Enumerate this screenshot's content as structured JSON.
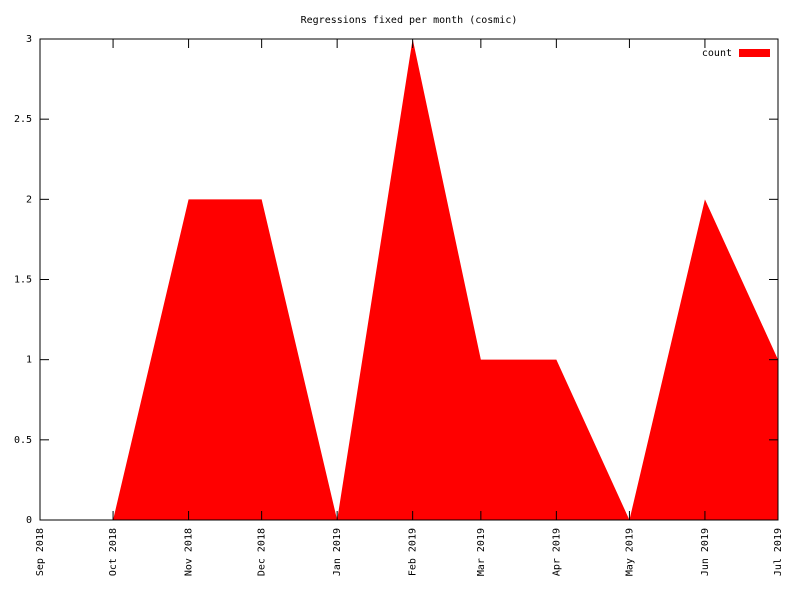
{
  "chart_data": {
    "type": "area",
    "title": "Regressions fixed per month (cosmic)",
    "x": [
      "Oct 2018",
      "Nov 2018",
      "Dec 2018",
      "Jan 2019",
      "Feb 2019",
      "Mar 2019",
      "Apr 2019",
      "May 2019",
      "Jun 2019",
      "Jul 2019"
    ],
    "series": [
      {
        "name": "count",
        "color": "#ff0000",
        "values": [
          0,
          2,
          2,
          0,
          3,
          1,
          1,
          0,
          2,
          1
        ]
      }
    ],
    "xlim": [
      "Sep 2018",
      "Jul 2019"
    ],
    "xticks": [
      "Sep 2018",
      "Oct 2018",
      "Nov 2018",
      "Dec 2018",
      "Jan 2019",
      "Feb 2019",
      "Mar 2019",
      "Apr 2019",
      "May 2019",
      "Jun 2019",
      "Jul 2019"
    ],
    "ylim": [
      0,
      3
    ],
    "yticks": [
      0,
      0.5,
      1,
      1.5,
      2,
      2.5,
      3
    ],
    "legend": "top-right"
  }
}
